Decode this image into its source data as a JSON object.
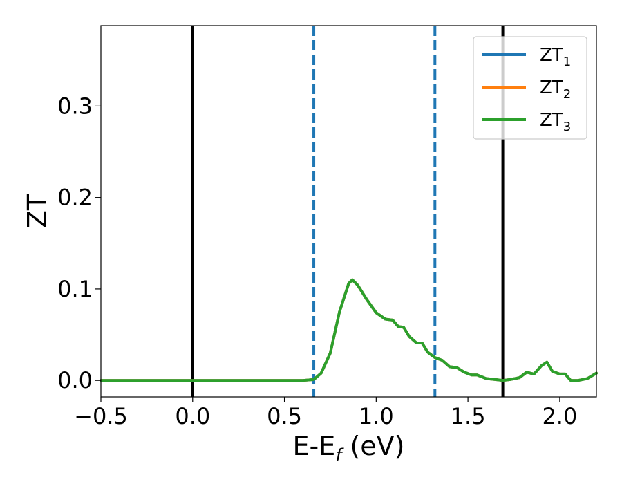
{
  "chart_data": {
    "type": "line",
    "xlabel": "E-E_f (eV)",
    "xlabel_parts": {
      "base": "E-E",
      "subscript": "f",
      "suffix": " (eV)"
    },
    "ylabel": "ZT",
    "xlim": [
      -0.5,
      2.2
    ],
    "ylim": [
      -0.018,
      0.388
    ],
    "x_ticks": [
      -0.5,
      0.0,
      0.5,
      1.0,
      1.5,
      2.0
    ],
    "x_tick_labels": [
      "−0.5",
      "0.0",
      "0.5",
      "1.0",
      "1.5",
      "2.0"
    ],
    "y_ticks": [
      0.0,
      0.1,
      0.2,
      0.3
    ],
    "y_tick_labels": [
      "0.0",
      "0.1",
      "0.2",
      "0.3"
    ],
    "grid": false,
    "legend_position": "top-right",
    "vertical_lines": [
      {
        "x": 0.0,
        "style": "solid",
        "color": "#000000"
      },
      {
        "x": 0.66,
        "style": "dashed",
        "color": "#1f77b4"
      },
      {
        "x": 1.32,
        "style": "dashed",
        "color": "#1f77b4"
      },
      {
        "x": 1.69,
        "style": "solid",
        "color": "#000000"
      }
    ],
    "series": [
      {
        "name": "ZT_1",
        "label_base": "ZT",
        "label_sub": "1",
        "color": "#1f77b4",
        "x": [
          -0.5,
          0.0,
          0.5,
          0.6,
          0.66,
          0.7,
          0.75,
          0.8,
          0.85,
          0.87,
          0.9,
          0.95,
          1.0,
          1.05,
          1.09,
          1.12,
          1.15,
          1.18,
          1.22,
          1.25,
          1.28,
          1.32,
          1.36,
          1.4,
          1.44,
          1.48,
          1.52,
          1.55,
          1.6,
          1.65,
          1.69,
          1.73,
          1.78,
          1.82,
          1.86,
          1.9,
          1.93,
          1.96,
          2.0,
          2.03,
          2.06,
          2.1,
          2.15,
          2.2
        ],
        "y": [
          0.0,
          0.0,
          0.0,
          0.0,
          0.001,
          0.008,
          0.03,
          0.075,
          0.106,
          0.11,
          0.104,
          0.088,
          0.074,
          0.067,
          0.066,
          0.059,
          0.058,
          0.048,
          0.041,
          0.041,
          0.031,
          0.025,
          0.022,
          0.015,
          0.014,
          0.009,
          0.006,
          0.006,
          0.002,
          0.001,
          0.0,
          0.001,
          0.003,
          0.009,
          0.007,
          0.016,
          0.02,
          0.01,
          0.007,
          0.007,
          0.0,
          0.0,
          0.002,
          0.008
        ]
      },
      {
        "name": "ZT_2",
        "label_base": "ZT",
        "label_sub": "2",
        "color": "#ff7f0e",
        "x": [
          -0.5,
          0.0,
          0.5,
          0.6,
          0.66,
          0.7,
          0.75,
          0.8,
          0.85,
          0.87,
          0.9,
          0.95,
          1.0,
          1.05,
          1.09,
          1.12,
          1.15,
          1.18,
          1.22,
          1.25,
          1.28,
          1.32,
          1.36,
          1.4,
          1.44,
          1.48,
          1.52,
          1.55,
          1.6,
          1.65,
          1.69,
          1.73,
          1.78,
          1.82,
          1.86,
          1.9,
          1.93,
          1.96,
          2.0,
          2.03,
          2.06,
          2.1,
          2.15,
          2.2
        ],
        "y": [
          0.0,
          0.0,
          0.0,
          0.0,
          0.001,
          0.008,
          0.03,
          0.075,
          0.106,
          0.11,
          0.104,
          0.088,
          0.074,
          0.067,
          0.066,
          0.059,
          0.058,
          0.048,
          0.041,
          0.041,
          0.031,
          0.025,
          0.022,
          0.015,
          0.014,
          0.009,
          0.006,
          0.006,
          0.002,
          0.001,
          0.0,
          0.001,
          0.003,
          0.009,
          0.007,
          0.016,
          0.02,
          0.01,
          0.007,
          0.007,
          0.0,
          0.0,
          0.002,
          0.008
        ]
      },
      {
        "name": "ZT_3",
        "label_base": "ZT",
        "label_sub": "3",
        "color": "#2ca02c",
        "x": [
          -0.5,
          0.0,
          0.5,
          0.6,
          0.66,
          0.7,
          0.75,
          0.8,
          0.85,
          0.87,
          0.9,
          0.95,
          1.0,
          1.05,
          1.09,
          1.12,
          1.15,
          1.18,
          1.22,
          1.25,
          1.28,
          1.32,
          1.36,
          1.4,
          1.44,
          1.48,
          1.52,
          1.55,
          1.6,
          1.65,
          1.69,
          1.73,
          1.78,
          1.82,
          1.86,
          1.9,
          1.93,
          1.96,
          2.0,
          2.03,
          2.06,
          2.1,
          2.15,
          2.2
        ],
        "y": [
          0.0,
          0.0,
          0.0,
          0.0,
          0.001,
          0.008,
          0.03,
          0.075,
          0.106,
          0.11,
          0.104,
          0.088,
          0.074,
          0.067,
          0.066,
          0.059,
          0.058,
          0.048,
          0.041,
          0.041,
          0.031,
          0.025,
          0.022,
          0.015,
          0.014,
          0.009,
          0.006,
          0.006,
          0.002,
          0.001,
          0.0,
          0.001,
          0.003,
          0.009,
          0.007,
          0.016,
          0.02,
          0.01,
          0.007,
          0.007,
          0.0,
          0.0,
          0.002,
          0.008
        ]
      }
    ]
  }
}
